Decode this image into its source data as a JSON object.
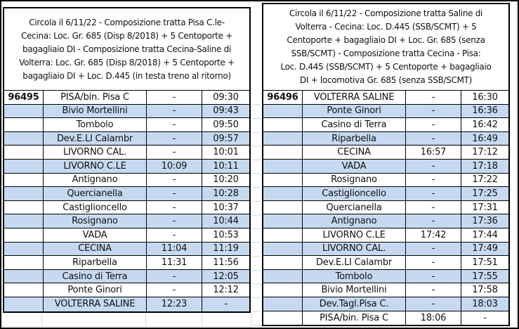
{
  "document": {
    "type": "railway-timetable-sheet",
    "date_note": "Circola il 6/11/22"
  },
  "colors": {
    "row_alternate": "#C6D9F1",
    "row_base": "#FFFFFF",
    "table_border": "#000000",
    "gridline": "#D2D9E5",
    "text": "#111111"
  },
  "left_table": {
    "train_number": "96495",
    "header": "Circola il 6/11/22 - Composizione tratta Pisa C.le-Cecina: Loc. Gr. 685 (Disp 8/2018) + 5 Centoporte + bagagliaio DI - Composizione tratta Cecina-Saline di Volterra: Loc. Gr. 685 (Disp 8/2018) + 5 Centoporte + bagagliaio DI + Loc. D.445 (in testa treno al ritorno)",
    "header_lines": [
      "Circola il 6/11/22 - Composizione tratta Pisa C.le-",
      "Cecina: Loc. Gr. 685 (Disp 8/2018) + 5 Centoporte +",
      "bagagliaio DI - Composizione tratta Cecina-Saline di",
      "Volterra: Loc. Gr. 685 (Disp 8/2018) + 5 Centoporte +",
      "bagagliaio DI + Loc. D.445 (in testa treno al ritorno)"
    ],
    "rows": [
      {
        "station": "PISA/bin. Pisa C",
        "arrival": "-",
        "departure": "09:30"
      },
      {
        "station": "Bivio Mortellini",
        "arrival": "-",
        "departure": "09:43"
      },
      {
        "station": "Tombolo",
        "arrival": "-",
        "departure": "09:50"
      },
      {
        "station": "Dev.E.LI Calambr",
        "arrival": "-",
        "departure": "09:57"
      },
      {
        "station": "LIVORNO CAL.",
        "arrival": "-",
        "departure": "10:01"
      },
      {
        "station": "LIVORNO C.LE",
        "arrival": "10:09",
        "departure": "10:11"
      },
      {
        "station": "Antignano",
        "arrival": "-",
        "departure": "10:20"
      },
      {
        "station": "Quercianella",
        "arrival": "-",
        "departure": "10:28"
      },
      {
        "station": "Castiglioncello",
        "arrival": "-",
        "departure": "10:37"
      },
      {
        "station": "Rosignano",
        "arrival": "-",
        "departure": "10:44"
      },
      {
        "station": "VADA",
        "arrival": "-",
        "departure": "10:53"
      },
      {
        "station": "CECINA",
        "arrival": "11:04",
        "departure": "11:19"
      },
      {
        "station": "Riparbella",
        "arrival": "11:31",
        "departure": "11:56"
      },
      {
        "station": "Casino di Terra",
        "arrival": "-",
        "departure": "12:05"
      },
      {
        "station": "Ponte Ginori",
        "arrival": "-",
        "departure": "12:12"
      },
      {
        "station": "VOLTERRA SALINE",
        "arrival": "12:23",
        "departure": "-"
      }
    ]
  },
  "right_table": {
    "train_number": "96496",
    "header": "Circola il 6/11/22 - Composizione tratta Saline di Volterra - Cecina:  Loc. D.445 (SSB/SCMT) + 5 Centoporte +  bagagliaio DI + Loc. Gr. 685 (senza SSB/SCMT) - Composizione tratta Cecina - Pisa: Loc. D.445 (SSB/SCMT) + 5 Centoporte + bagagliaio DI +  locomotiva Gr. 685 (senza SSB/SCMT)",
    "header_lines": [
      "Circola il 6/11/22 - Composizione tratta Saline di",
      "Volterra - Cecina:  Loc. D.445 (SSB/SCMT) + 5",
      "Centoporte +  bagagliaio DI + Loc. Gr. 685 (senza",
      "SSB/SCMT) - Composizione tratta Cecina - Pisa:",
      "Loc. D.445 (SSB/SCMT) + 5 Centoporte + bagagliaio",
      "DI +  locomotiva Gr. 685 (senza SSB/SCMT)"
    ],
    "rows": [
      {
        "station": "VOLTERRA SALINE",
        "arrival": "-",
        "departure": "16:30"
      },
      {
        "station": "Ponte Ginori",
        "arrival": "-",
        "departure": "16:36"
      },
      {
        "station": "Casino di Terra",
        "arrival": "-",
        "departure": "16:42"
      },
      {
        "station": "Riparbella",
        "arrival": "-",
        "departure": "16:49"
      },
      {
        "station": "CECINA",
        "arrival": "16:57",
        "departure": "17:12"
      },
      {
        "station": "VADA",
        "arrival": "-",
        "departure": "17:18"
      },
      {
        "station": "Rosignano",
        "arrival": "-",
        "departure": "17:22"
      },
      {
        "station": "Castiglioncello",
        "arrival": "-",
        "departure": "17:25"
      },
      {
        "station": "Quercianella",
        "arrival": "-",
        "departure": "17:31"
      },
      {
        "station": "Antignano",
        "arrival": "-",
        "departure": "17:36"
      },
      {
        "station": "LIVORNO C.LE",
        "arrival": "17:42",
        "departure": "17:44"
      },
      {
        "station": "LIVORNO CAL.",
        "arrival": "-",
        "departure": "17:49"
      },
      {
        "station": "Dev.E.LI Calambr",
        "arrival": "-",
        "departure": "17:51"
      },
      {
        "station": "Tombolo",
        "arrival": "-",
        "departure": "17:55"
      },
      {
        "station": "Bivio Mortellini",
        "arrival": "-",
        "departure": "17:58"
      },
      {
        "station": "Dev.Tagl.Pisa C.",
        "arrival": "-",
        "departure": "18:03"
      },
      {
        "station": "PISA/bin. Pisa C",
        "arrival": "18:06",
        "departure": "-"
      }
    ]
  }
}
